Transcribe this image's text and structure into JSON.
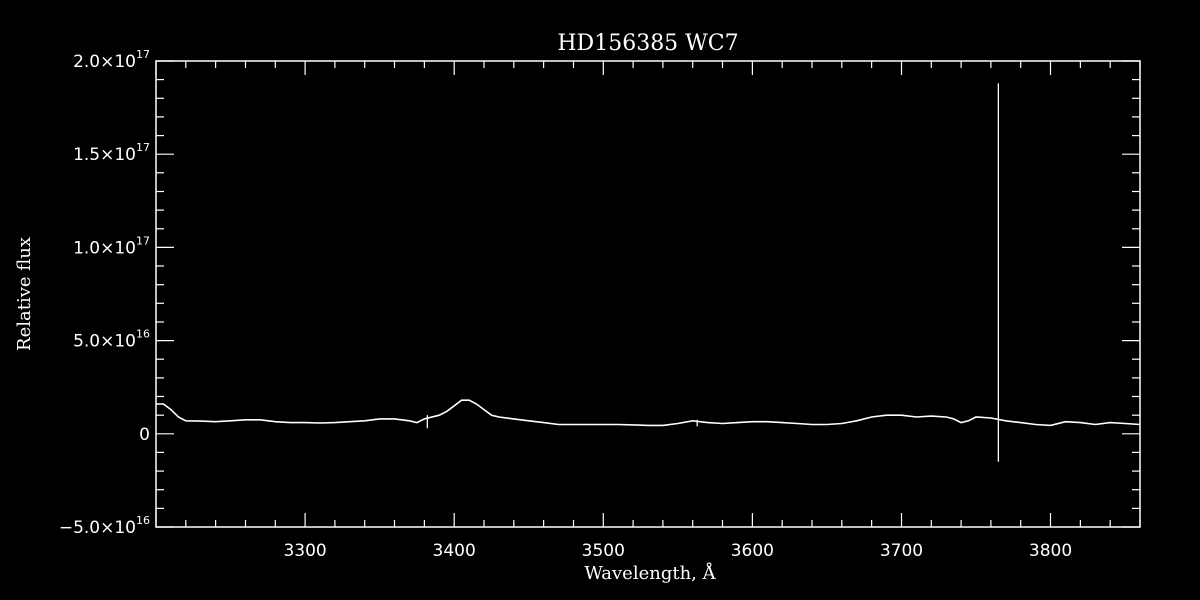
{
  "chart_data": {
    "type": "line",
    "title": "HD156385  WC7",
    "xlabel": "Wavelength, Å",
    "ylabel": "Relative flux",
    "xlim": [
      3200,
      3860
    ],
    "ylim": [
      -5e+16,
      2e+17
    ],
    "x_ticks": [
      {
        "value": 3300,
        "label": "3300"
      },
      {
        "value": 3400,
        "label": "3400"
      },
      {
        "value": 3500,
        "label": "3500"
      },
      {
        "value": 3600,
        "label": "3600"
      },
      {
        "value": 3700,
        "label": "3700"
      },
      {
        "value": 3800,
        "label": "3800"
      }
    ],
    "y_ticks": [
      {
        "value": -5e+16,
        "mantissa": "−5.0×10",
        "exponent": "16"
      },
      {
        "value": 0,
        "mantissa": "0",
        "exponent": ""
      },
      {
        "value": 5e+16,
        "mantissa": "5.0×10",
        "exponent": "16"
      },
      {
        "value": 1e+17,
        "mantissa": "1.0×10",
        "exponent": "17"
      },
      {
        "value": 1.5e+17,
        "mantissa": "1.5×10",
        "exponent": "17"
      },
      {
        "value": 2e+17,
        "mantissa": "2.0×10",
        "exponent": "17"
      }
    ],
    "series": [
      {
        "x": [
          3200,
          3205,
          3210,
          3215,
          3220,
          3230,
          3240,
          3250,
          3260,
          3270,
          3280,
          3290,
          3300,
          3310,
          3320,
          3330,
          3340,
          3350,
          3360,
          3370,
          3375,
          3380,
          3390,
          3395,
          3400,
          3405,
          3410,
          3415,
          3420,
          3425,
          3430,
          3440,
          3450,
          3460,
          3470,
          3480,
          3490,
          3500,
          3510,
          3520,
          3530,
          3540,
          3550,
          3560,
          3570,
          3580,
          3590,
          3600,
          3610,
          3620,
          3630,
          3640,
          3650,
          3660,
          3670,
          3680,
          3690,
          3700,
          3710,
          3720,
          3730,
          3735,
          3740,
          3745,
          3750,
          3760,
          3770,
          3780,
          3790,
          3800,
          3810,
          3820,
          3830,
          3840,
          3850,
          3860
        ],
        "y": [
          1.6e+16,
          1.6e+16,
          1.3e+16,
          9000000000000000.0,
          7000000000000000.0,
          6800000000000000.0,
          6500000000000000.0,
          7000000000000000.0,
          7500000000000000.0,
          7500000000000000.0,
          6500000000000000.0,
          6000000000000000.0,
          6000000000000000.0,
          5800000000000000.0,
          6000000000000000.0,
          6500000000000000.0,
          7000000000000000.0,
          8000000000000000.0,
          8000000000000000.0,
          7000000000000000.0,
          6000000000000000.0,
          8000000000000000.0,
          1e+16,
          1.2e+16,
          1.5e+16,
          1.8e+16,
          1.8e+16,
          1.6e+16,
          1.3e+16,
          1e+16,
          9000000000000000.0,
          8000000000000000.0,
          7000000000000000.0,
          6000000000000000.0,
          5000000000000000.0,
          5000000000000000.0,
          5000000000000000.0,
          5000000000000000.0,
          5000000000000000.0,
          4800000000000000.0,
          4500000000000000.0,
          4500000000000000.0,
          5500000000000000.0,
          7000000000000000.0,
          6000000000000000.0,
          5500000000000000.0,
          6000000000000000.0,
          6500000000000000.0,
          6500000000000000.0,
          6000000000000000.0,
          5500000000000000.0,
          5000000000000000.0,
          5000000000000000.0,
          5500000000000000.0,
          7000000000000000.0,
          9000000000000000.0,
          1e+16,
          1e+16,
          9000000000000000.0,
          9500000000000000.0,
          9000000000000000.0,
          8000000000000000.0,
          6000000000000000.0,
          7000000000000000.0,
          9000000000000000.0,
          8500000000000000.0,
          7000000000000000.0,
          6000000000000000.0,
          5000000000000000.0,
          4500000000000000.0,
          6500000000000000.0,
          6000000000000000.0,
          5000000000000000.0,
          6000000000000000.0,
          5500000000000000.0,
          5000000000000000.0
        ]
      }
    ],
    "spikes": [
      {
        "x": 3382,
        "y_low": 3000000000000000.0,
        "y_high": 1e+16
      },
      {
        "x": 3563,
        "y_low": 4000000000000000.0,
        "y_high": 7500000000000000.0
      },
      {
        "x": 3765,
        "y_low": -1.5e+16,
        "y_high": 1.88e+17
      }
    ],
    "grid": false,
    "legend": "none"
  }
}
